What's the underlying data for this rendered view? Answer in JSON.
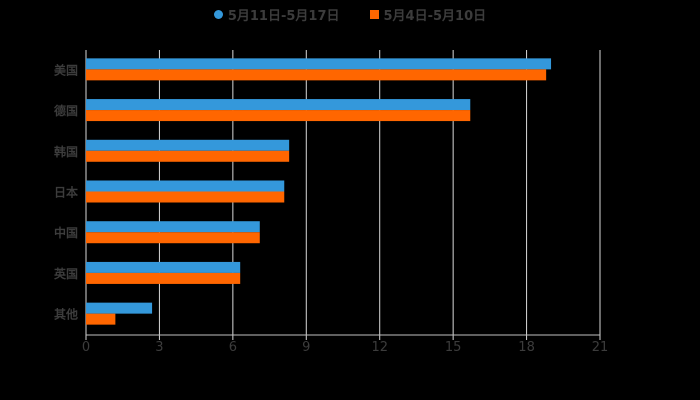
{
  "legend": [
    {
      "label": "5月11日-5月17日",
      "color": "#3498db",
      "shape": "circle"
    },
    {
      "label": "5月4日-5月10日",
      "color": "#ff6600",
      "shape": "square"
    }
  ],
  "chart_data": {
    "type": "bar",
    "orientation": "horizontal",
    "title": "",
    "xlabel": "",
    "ylabel": "",
    "categories": [
      "美国",
      "德国",
      "韩国",
      "日本",
      "中国",
      "英国",
      "其他"
    ],
    "series": [
      {
        "name": "5月11日-5月17日",
        "color": "#3498db",
        "values": [
          19.0,
          15.7,
          8.3,
          8.1,
          7.1,
          6.3,
          2.7
        ]
      },
      {
        "name": "5月4日-5月10日",
        "color": "#ff6600",
        "values": [
          18.8,
          15.7,
          8.3,
          8.1,
          7.1,
          6.3,
          1.2
        ]
      }
    ],
    "xlim": [
      0,
      21
    ],
    "xticks": [
      0,
      3,
      6,
      9,
      12,
      15,
      18,
      21
    ],
    "grid": true,
    "legend_position": "top",
    "background": "#000000"
  }
}
